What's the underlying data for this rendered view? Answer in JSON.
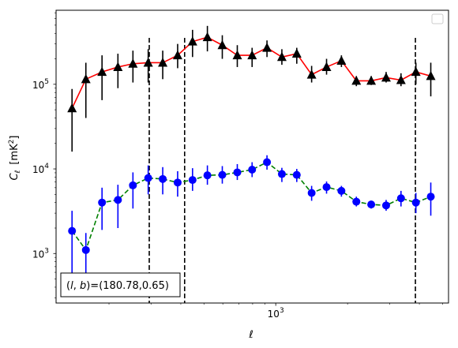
{
  "chart_data": {
    "type": "scatter",
    "xscale": "log",
    "yscale": "log",
    "xlabel": "ℓ",
    "ylabel_main": "C",
    "ylabel_sub": "ℓ",
    "ylabel_unit": "[mK",
    "ylabel_unit_sup": "2",
    "ylabel_unit_close": "]",
    "xlim": [
      120,
      5300
    ],
    "ylim": [
      260,
      750000
    ],
    "x_ticks": [
      {
        "value": 1000,
        "base": "10",
        "exp": "3"
      }
    ],
    "y_ticks": [
      {
        "value": 1000,
        "base": "10",
        "exp": "3"
      },
      {
        "value": 10000,
        "base": "10",
        "exp": "4"
      },
      {
        "value": 100000,
        "base": "10",
        "exp": "5"
      }
    ],
    "vlines": [
      295,
      415,
      3850
    ],
    "annotation": {
      "text": "(l, b)=(180.78,0.65)"
    },
    "legend": {
      "placement": "top-right",
      "entries": []
    },
    "series": [
      {
        "marker": "triangle",
        "color": "#000000",
        "line_color": "#ff0000",
        "line_style": "solid",
        "points": [
          {
            "x": 140,
            "y": 52000,
            "lo": 16000,
            "hi": 88000
          },
          {
            "x": 160,
            "y": 115000,
            "lo": 40000,
            "hi": 180000
          },
          {
            "x": 187,
            "y": 140000,
            "lo": 65000,
            "hi": 220000
          },
          {
            "x": 218,
            "y": 160000,
            "lo": 90000,
            "hi": 230000
          },
          {
            "x": 252,
            "y": 175000,
            "lo": 105000,
            "hi": 250000
          },
          {
            "x": 292,
            "y": 180000,
            "lo": 105000,
            "hi": 260000
          },
          {
            "x": 336,
            "y": 180000,
            "lo": 115000,
            "hi": 250000
          },
          {
            "x": 388,
            "y": 220000,
            "lo": 155000,
            "hi": 300000
          },
          {
            "x": 448,
            "y": 320000,
            "lo": 210000,
            "hi": 440000
          },
          {
            "x": 517,
            "y": 360000,
            "lo": 245000,
            "hi": 490000
          },
          {
            "x": 597,
            "y": 290000,
            "lo": 200000,
            "hi": 380000
          },
          {
            "x": 690,
            "y": 220000,
            "lo": 160000,
            "hi": 290000
          },
          {
            "x": 796,
            "y": 220000,
            "lo": 160000,
            "hi": 270000
          },
          {
            "x": 919,
            "y": 270000,
            "lo": 210000,
            "hi": 330000
          },
          {
            "x": 1061,
            "y": 210000,
            "lo": 170000,
            "hi": 260000
          },
          {
            "x": 1225,
            "y": 230000,
            "lo": 175000,
            "hi": 270000
          },
          {
            "x": 1414,
            "y": 130000,
            "lo": 105000,
            "hi": 165000
          },
          {
            "x": 1633,
            "y": 160000,
            "lo": 130000,
            "hi": 200000
          },
          {
            "x": 1885,
            "y": 190000,
            "lo": 160000,
            "hi": 220000
          },
          {
            "x": 2177,
            "y": 110000,
            "lo": 95000,
            "hi": 125000
          },
          {
            "x": 2513,
            "y": 110000,
            "lo": 98000,
            "hi": 125000
          },
          {
            "x": 2902,
            "y": 120000,
            "lo": 105000,
            "hi": 140000
          },
          {
            "x": 3350,
            "y": 112000,
            "lo": 95000,
            "hi": 135000
          },
          {
            "x": 3868,
            "y": 140000,
            "lo": 100000,
            "hi": 180000
          },
          {
            "x": 4466,
            "y": 125000,
            "lo": 72000,
            "hi": 180000
          }
        ]
      },
      {
        "marker": "circle",
        "color": "#0000ff",
        "line_color": "#008000",
        "line_style": "dashed",
        "points": [
          {
            "x": 140,
            "y": 1850,
            "lo": 510,
            "hi": 3200
          },
          {
            "x": 160,
            "y": 1100,
            "lo": 400,
            "hi": 1750
          },
          {
            "x": 187,
            "y": 4000,
            "lo": 1900,
            "hi": 6000
          },
          {
            "x": 218,
            "y": 4300,
            "lo": 2000,
            "hi": 6500
          },
          {
            "x": 252,
            "y": 6400,
            "lo": 3400,
            "hi": 9100
          },
          {
            "x": 292,
            "y": 7800,
            "lo": 5000,
            "hi": 11000
          },
          {
            "x": 336,
            "y": 7600,
            "lo": 5000,
            "hi": 10500
          },
          {
            "x": 388,
            "y": 6900,
            "lo": 4700,
            "hi": 9400
          },
          {
            "x": 448,
            "y": 7400,
            "lo": 5500,
            "hi": 10200
          },
          {
            "x": 517,
            "y": 8400,
            "lo": 6500,
            "hi": 11000
          },
          {
            "x": 597,
            "y": 8500,
            "lo": 6700,
            "hi": 10800
          },
          {
            "x": 690,
            "y": 9100,
            "lo": 7400,
            "hi": 11400
          },
          {
            "x": 796,
            "y": 9800,
            "lo": 8000,
            "hi": 12000
          },
          {
            "x": 919,
            "y": 12000,
            "lo": 9800,
            "hi": 14500
          },
          {
            "x": 1061,
            "y": 8700,
            "lo": 7000,
            "hi": 10300
          },
          {
            "x": 1225,
            "y": 8500,
            "lo": 7000,
            "hi": 10000
          },
          {
            "x": 1414,
            "y": 5200,
            "lo": 4200,
            "hi": 6300
          },
          {
            "x": 1633,
            "y": 6100,
            "lo": 5100,
            "hi": 7100
          },
          {
            "x": 1885,
            "y": 5500,
            "lo": 4700,
            "hi": 6300
          },
          {
            "x": 2177,
            "y": 4100,
            "lo": 3600,
            "hi": 4700
          },
          {
            "x": 2513,
            "y": 3800,
            "lo": 3400,
            "hi": 4200
          },
          {
            "x": 2902,
            "y": 3700,
            "lo": 3200,
            "hi": 4300
          },
          {
            "x": 3350,
            "y": 4500,
            "lo": 3600,
            "hi": 5500
          },
          {
            "x": 3868,
            "y": 4000,
            "lo": 3000,
            "hi": 5200
          },
          {
            "x": 4466,
            "y": 4700,
            "lo": 2800,
            "hi": 6900
          }
        ]
      }
    ]
  }
}
